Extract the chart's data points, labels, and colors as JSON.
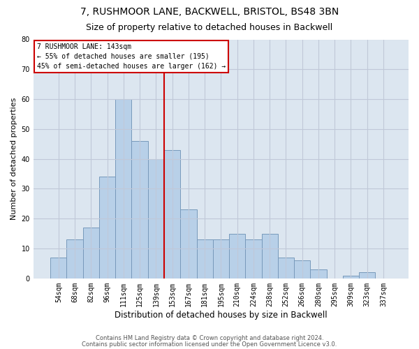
{
  "title1": "7, RUSHMOOR LANE, BACKWELL, BRISTOL, BS48 3BN",
  "title2": "Size of property relative to detached houses in Backwell",
  "xlabel": "Distribution of detached houses by size in Backwell",
  "ylabel": "Number of detached properties",
  "footer1": "Contains HM Land Registry data © Crown copyright and database right 2024.",
  "footer2": "Contains public sector information licensed under the Open Government Licence v3.0.",
  "annotation_line1": "7 RUSHMOOR LANE: 143sqm",
  "annotation_line2": "← 55% of detached houses are smaller (195)",
  "annotation_line3": "45% of semi-detached houses are larger (162) →",
  "bar_values": [
    7,
    13,
    17,
    34,
    60,
    46,
    40,
    43,
    23,
    13,
    13,
    15,
    13,
    15,
    7,
    6,
    3,
    0,
    1,
    2,
    0
  ],
  "bar_labels": [
    "54sqm",
    "68sqm",
    "82sqm",
    "96sqm",
    "111sqm",
    "125sqm",
    "139sqm",
    "153sqm",
    "167sqm",
    "181sqm",
    "195sqm",
    "210sqm",
    "224sqm",
    "238sqm",
    "252sqm",
    "266sqm",
    "280sqm",
    "295sqm",
    "309sqm",
    "323sqm",
    "337sqm"
  ],
  "bar_color": "#b8d0e8",
  "bar_edge_color": "#7799bb",
  "vline_x": 6.5,
  "vline_color": "#cc0000",
  "annotation_box_color": "#cc0000",
  "grid_color": "#c0c8d8",
  "bg_color": "#dce6f0",
  "fig_bg_color": "#ffffff",
  "ylim": [
    0,
    80
  ],
  "yticks": [
    0,
    10,
    20,
    30,
    40,
    50,
    60,
    70,
    80
  ],
  "title1_fontsize": 10,
  "title2_fontsize": 9,
  "xlabel_fontsize": 8.5,
  "ylabel_fontsize": 8,
  "annot_fontsize": 7,
  "footer_fontsize": 6,
  "tick_fontsize": 7
}
